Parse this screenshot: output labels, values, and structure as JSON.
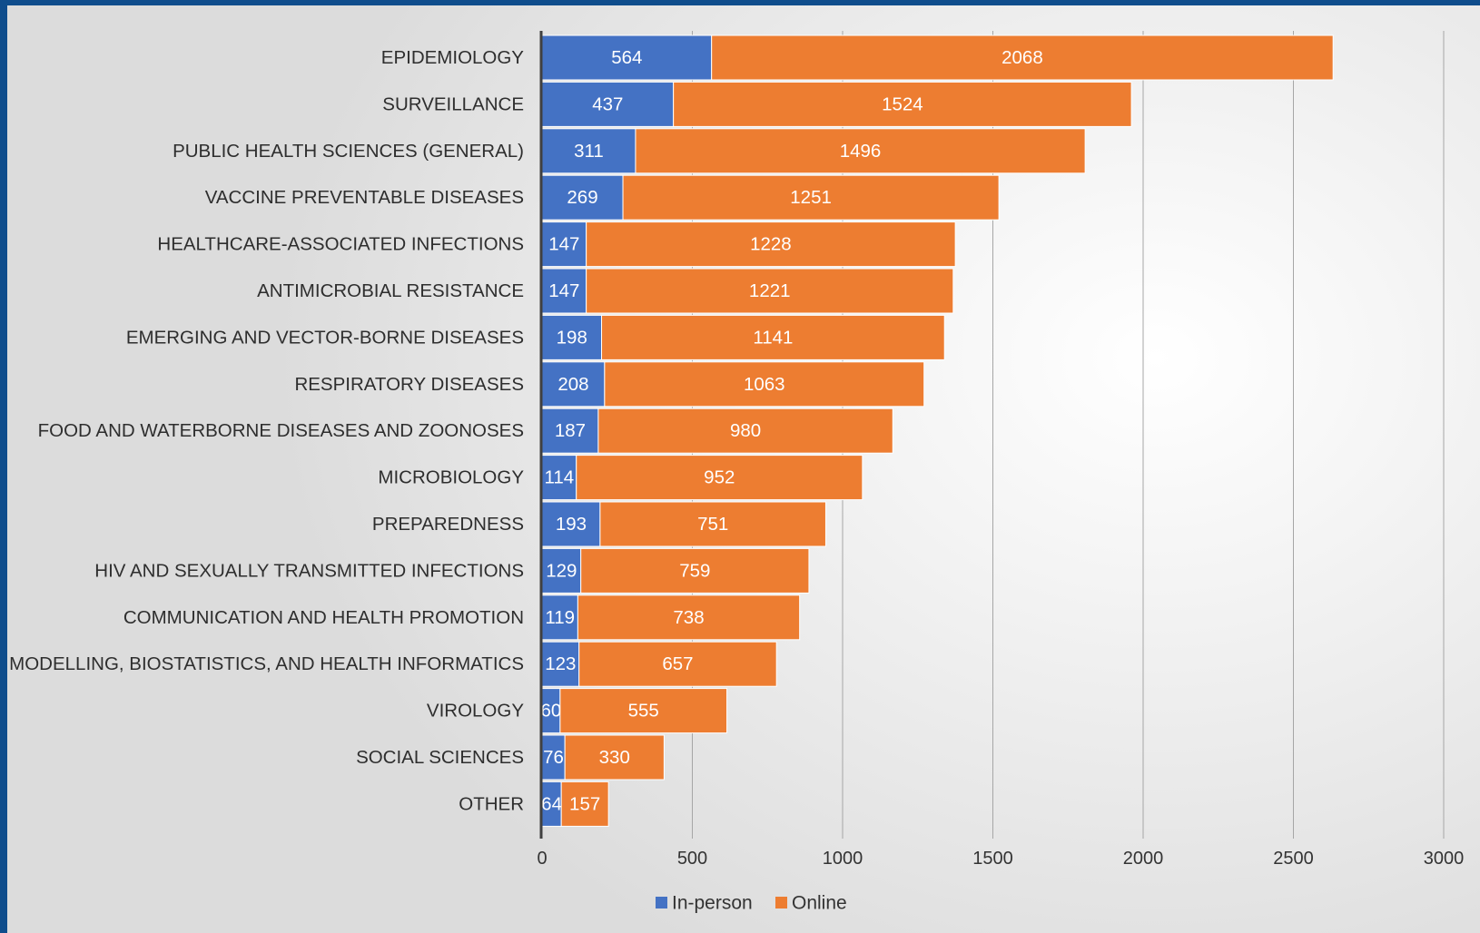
{
  "chart_data": {
    "type": "bar",
    "orientation": "horizontal",
    "stacked": true,
    "categories": [
      "EPIDEMIOLOGY",
      "SURVEILLANCE",
      "PUBLIC HEALTH SCIENCES (GENERAL)",
      "VACCINE PREVENTABLE DISEASES",
      "HEALTHCARE-ASSOCIATED INFECTIONS",
      "ANTIMICROBIAL RESISTANCE",
      "EMERGING AND VECTOR-BORNE DISEASES",
      "RESPIRATORY DISEASES",
      "FOOD AND WATERBORNE DISEASES AND ZOONOSES",
      "MICROBIOLOGY",
      "PREPAREDNESS",
      "HIV AND SEXUALLY TRANSMITTED INFECTIONS",
      "COMMUNICATION AND HEALTH PROMOTION",
      "MODELLING, BIOSTATISTICS, AND HEALTH INFORMATICS",
      "VIROLOGY",
      "SOCIAL SCIENCES",
      "OTHER"
    ],
    "series": [
      {
        "name": "In-person",
        "color": "#4472c4",
        "values": [
          564,
          437,
          311,
          269,
          147,
          147,
          198,
          208,
          187,
          114,
          193,
          129,
          119,
          123,
          60,
          76,
          64
        ]
      },
      {
        "name": "Online",
        "color": "#ed7d31",
        "values": [
          2068,
          1524,
          1496,
          1251,
          1228,
          1221,
          1141,
          1063,
          980,
          952,
          751,
          759,
          738,
          657,
          555,
          330,
          157
        ]
      }
    ],
    "xlim": [
      0,
      3000
    ],
    "xticks": [
      0,
      500,
      1000,
      1500,
      2000,
      2500,
      3000
    ],
    "title": "",
    "xlabel": "",
    "ylabel": "",
    "grid": "vertical",
    "legend_position": "bottom"
  }
}
